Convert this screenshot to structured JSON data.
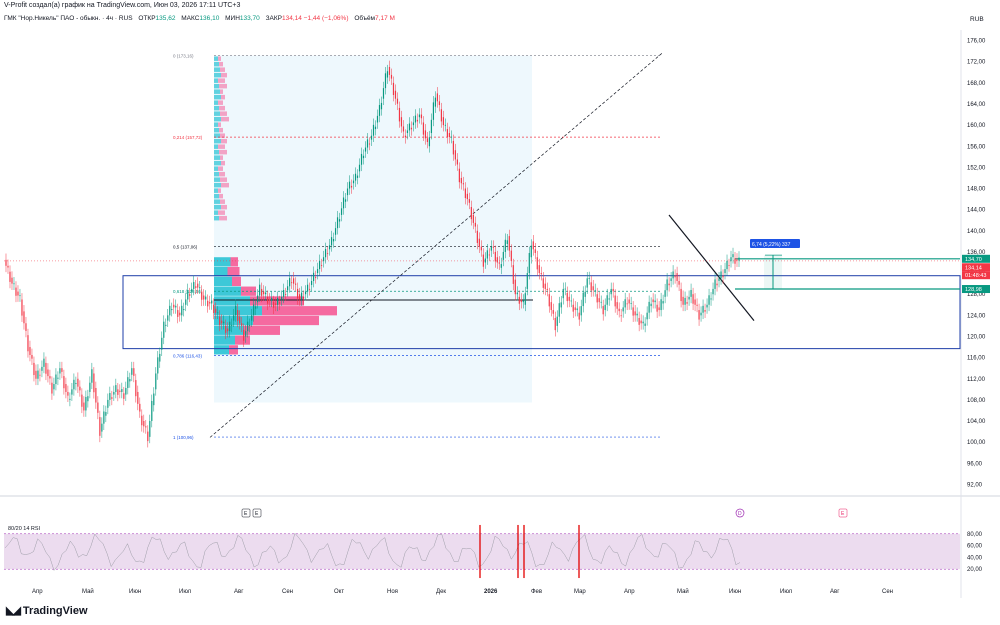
{
  "header": {
    "credit": "V-Profit создал(а) график на TradingView.com, Июн 03, 2026 17:11 UTC+3",
    "symbol": "ГМК \"Нор.Никель\" ПАО - обыкн. · 4ч · RUS",
    "open_label": "ОТКР",
    "open_value": "135,62",
    "high_label": "МАКС",
    "high_value": "136,10",
    "low_label": "МИН",
    "low_value": "133,70",
    "close_label": "ЗАКР",
    "close_value": "134,14 −1,44 (−1,06%)",
    "volume_label": "Объём",
    "volume_value": "7,17 M",
    "currency": "RUB"
  },
  "colors": {
    "up": "#089981",
    "down": "#f23645",
    "fib_line": "#9e9e9e",
    "price_line": "#131722",
    "box": "#1e3ea8",
    "teal_level": "#089981",
    "vp_up": "#3dc8d8",
    "vp_down": "#f56aa0",
    "rsi_band": "#ecdcef",
    "measure": "#1e53e5"
  },
  "chart_data": {
    "type": "line",
    "title": "ГМК \"Нор.Никель\" ПАО - обыкн. · 4ч · RUS",
    "x_ticks": [
      "Апр",
      "Май",
      "Июн",
      "Июл",
      "Авг",
      "Сен",
      "Окт",
      "Ноя",
      "Дек",
      "2026",
      "Фев",
      "Мар",
      "Апр",
      "Май",
      "Июн",
      "Июл",
      "Авг",
      "Сен"
    ],
    "y_ticks": [
      "176,00",
      "172,00",
      "168,00",
      "164,00",
      "160,00",
      "156,00",
      "152,00",
      "148,00",
      "144,00",
      "140,00",
      "136,00",
      "132,00",
      "128,00",
      "124,00",
      "120,00",
      "116,00",
      "112,00",
      "108,00",
      "104,00",
      "100,00",
      "96,00",
      "92,00"
    ],
    "ylim": [
      90,
      178
    ],
    "series": [
      {
        "x_index": [
          0,
          2,
          4,
          6,
          8,
          10,
          12,
          14,
          16,
          18,
          20,
          22,
          24,
          26,
          28,
          30,
          32,
          34,
          36,
          38,
          40,
          42,
          44,
          46,
          48,
          50,
          52,
          54,
          56,
          58,
          60,
          62,
          64,
          66,
          68,
          70,
          72,
          74,
          76,
          78,
          80,
          82,
          84,
          86,
          88,
          90,
          92,
          94,
          96,
          98,
          100,
          102,
          104,
          106,
          108,
          110,
          112,
          114,
          116,
          118,
          120,
          122,
          124,
          126,
          128,
          130,
          132,
          134,
          136,
          138,
          140,
          142,
          144,
          146,
          148,
          150,
          152,
          154,
          156,
          158,
          160,
          162,
          164,
          166,
          168,
          170,
          172,
          174,
          176,
          178,
          180,
          182,
          184
        ],
        "values": [
          134.5,
          130,
          127,
          118,
          112,
          115,
          110,
          114,
          108,
          112,
          106,
          113,
          102,
          108,
          110,
          109,
          114,
          105,
          101,
          113,
          122,
          126,
          124,
          128,
          130,
          127,
          126,
          123,
          121,
          125,
          120,
          124,
          129,
          127,
          126,
          128,
          131,
          127,
          129,
          132,
          135,
          138,
          143,
          148,
          150,
          155,
          158,
          163,
          171,
          165,
          158,
          160,
          162,
          156,
          166,
          160,
          157,
          150,
          146,
          140,
          134,
          137,
          133,
          139,
          128,
          126,
          138,
          132,
          128,
          122,
          129,
          126,
          124,
          131,
          128,
          125,
          129,
          124,
          127,
          124,
          122,
          127,
          125,
          130,
          132,
          126,
          128,
          124,
          126,
          130,
          132,
          135,
          134.14
        ]
      }
    ],
    "fib_levels": [
      {
        "ratio_label": "0 (173,16)",
        "price": 173.16
      },
      {
        "ratio_label": "0,214 (157,72)",
        "price": 157.72
      },
      {
        "ratio_label": "0,5 (137,06)",
        "price": 137.06
      },
      {
        "ratio_label": "0,618 (128,56)",
        "price": 128.56
      },
      {
        "ratio_label": "0,786 (116,43)",
        "price": 116.43
      },
      {
        "ratio_label": "1 (100,96)",
        "price": 100.96
      }
    ],
    "price_badges": [
      {
        "text": "134,70",
        "price": 134.7,
        "color": "#089981"
      },
      {
        "text": "134,14",
        "price": 133.1,
        "color": "#f23645"
      },
      {
        "text": "01:48:43",
        "price": 131.6,
        "color": "#f23645"
      },
      {
        "text": "128,98",
        "price": 128.98,
        "color": "#089981"
      }
    ],
    "measure_label": "6,74 (5,22%) 337",
    "indicator": {
      "label": "80/20 14 RSI",
      "y_ticks": [
        "80,00",
        "60,00",
        "40,00",
        "20,00"
      ],
      "ylim": [
        0,
        100
      ]
    },
    "markers": [
      "E",
      "E",
      "E"
    ],
    "dividend_marker": "D"
  },
  "brand": "TradingView"
}
